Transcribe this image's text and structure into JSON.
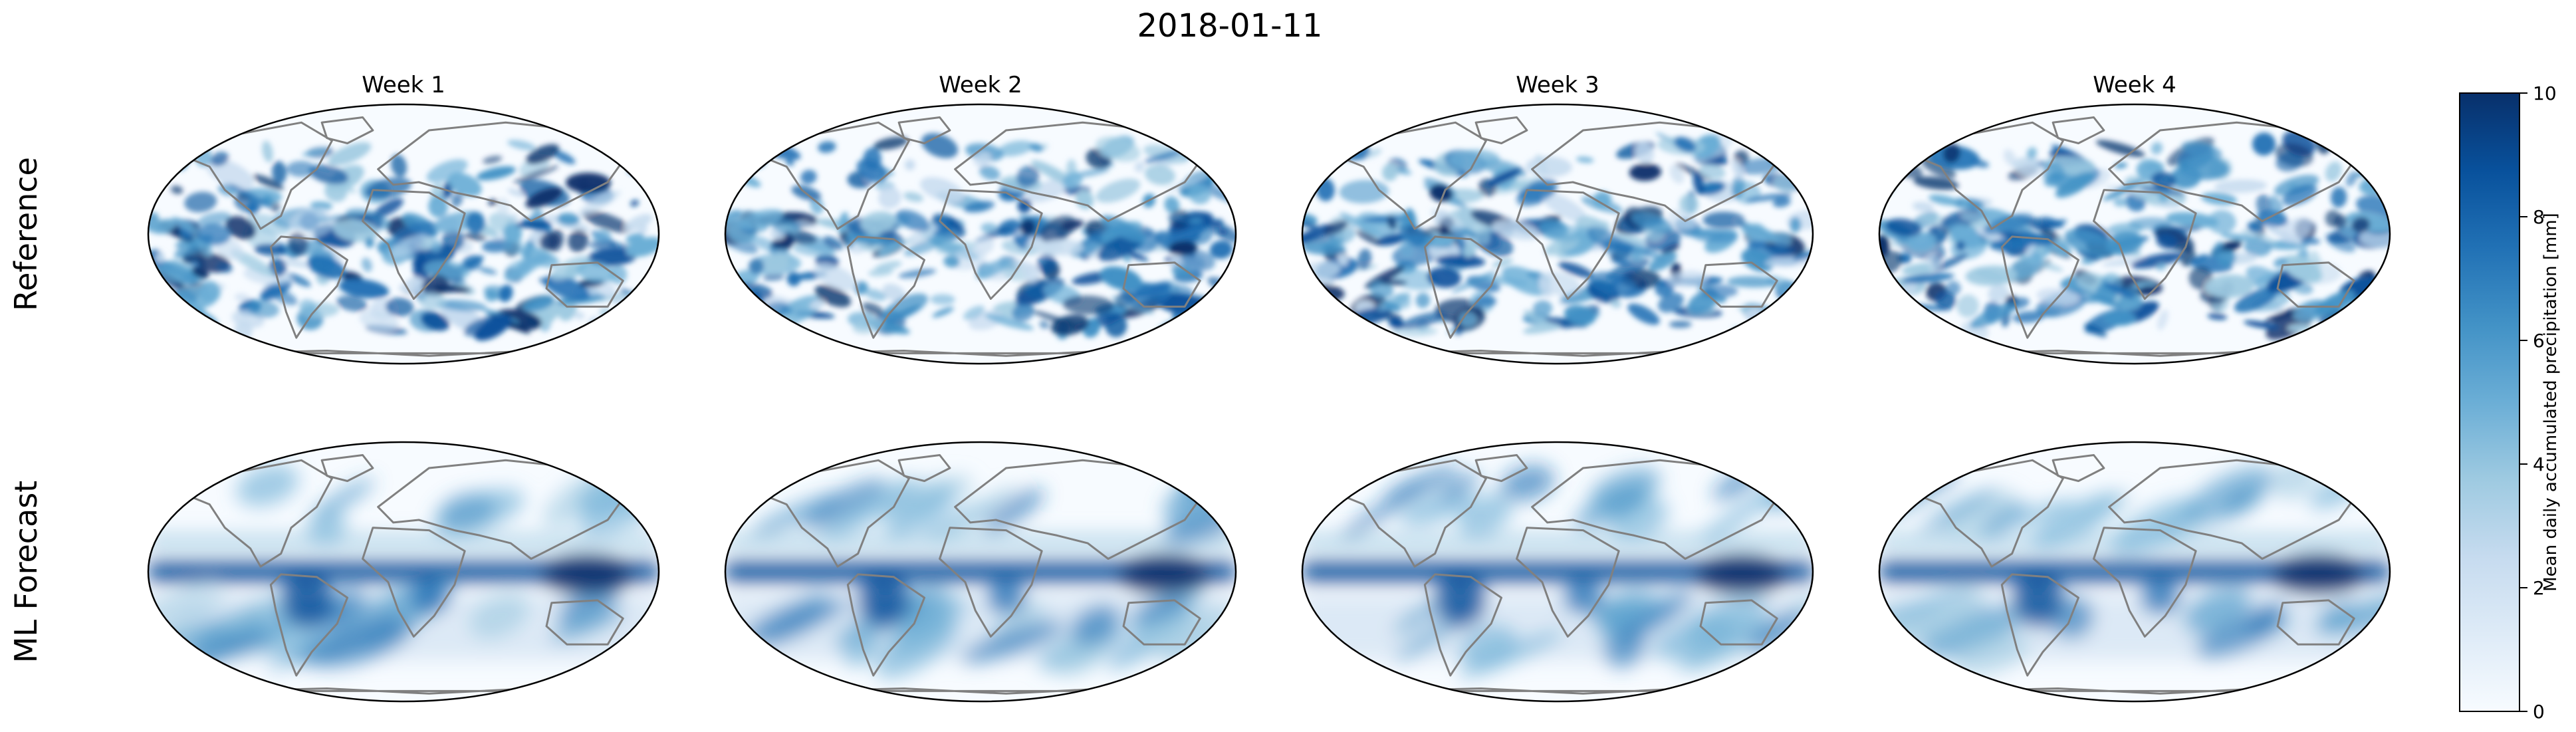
{
  "figure": {
    "title": "2018-01-11",
    "columns": [
      "Week 1",
      "Week 2",
      "Week 3",
      "Week 4"
    ],
    "rows": [
      "Reference",
      "ML Forecast"
    ]
  },
  "colorbar": {
    "label": "Mean daily accumulated precipitation [mm]",
    "min": 0,
    "max": 10,
    "ticks": [
      "0",
      "2",
      "4",
      "6",
      "8",
      "10"
    ],
    "colormap": "Blues",
    "colors": [
      "#f7fbff",
      "#deebf7",
      "#c6dbef",
      "#9ecae1",
      "#6baed6",
      "#4292c6",
      "#2171b5",
      "#08519c",
      "#08306b"
    ]
  },
  "style": {
    "coastline_color": "#808080",
    "map_background": "#f7fbff",
    "strong_color": "#08306b"
  },
  "chart_data": {
    "type": "heatmap",
    "title": "2018-01-11",
    "projection": "Robinson",
    "panels": [
      {
        "row": "Reference",
        "column": "Week 1"
      },
      {
        "row": "Reference",
        "column": "Week 2"
      },
      {
        "row": "Reference",
        "column": "Week 3"
      },
      {
        "row": "Reference",
        "column": "Week 4"
      },
      {
        "row": "ML Forecast",
        "column": "Week 1"
      },
      {
        "row": "ML Forecast",
        "column": "Week 2"
      },
      {
        "row": "ML Forecast",
        "column": "Week 3"
      },
      {
        "row": "ML Forecast",
        "column": "Week 4"
      }
    ],
    "colorbar_range": [
      0,
      10
    ],
    "colorbar_label": "Mean daily accumulated precipitation [mm]"
  }
}
